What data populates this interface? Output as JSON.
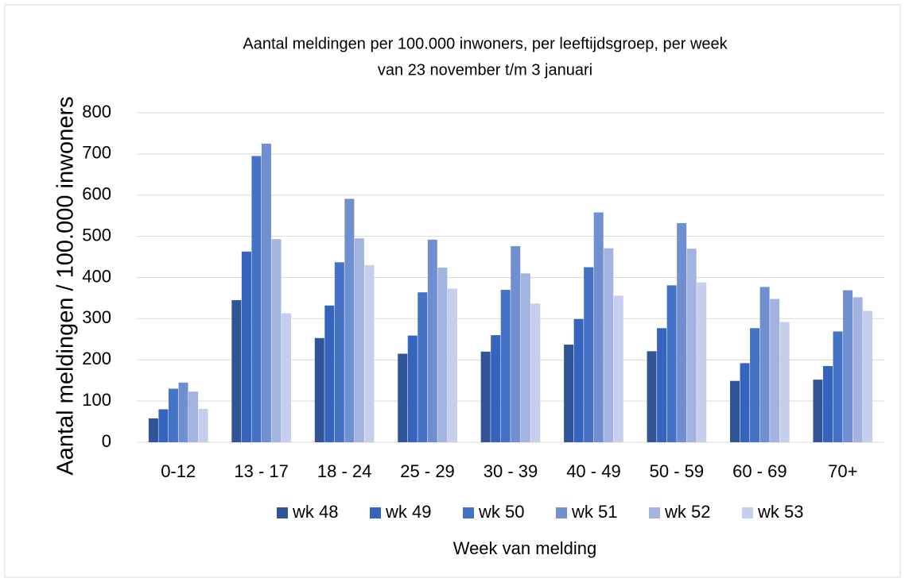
{
  "chart_data": {
    "type": "bar",
    "title": [
      "Aantal meldingen per 100.000 inwoners, per leeftijdsgroep, per week",
      "van 23 november t/m 3 januari"
    ],
    "x_label": "Week van melding",
    "y_label": "Aantal meldingen / 100.000 inwoners",
    "categories": [
      "0-12",
      "13 - 17",
      "18 - 24",
      "25 - 29",
      "30 - 39",
      "40 - 49",
      "50 - 59",
      "60 - 69",
      "70+"
    ],
    "series": [
      {
        "name": "wk 48",
        "color": "#2f5597",
        "values": [
          58,
          345,
          253,
          215,
          220,
          237,
          221,
          149,
          152
        ]
      },
      {
        "name": "wk 49",
        "color": "#3663bd",
        "values": [
          80,
          463,
          332,
          259,
          260,
          299,
          277,
          192,
          185
        ]
      },
      {
        "name": "wk 50",
        "color": "#4472c4",
        "values": [
          130,
          695,
          437,
          364,
          370,
          425,
          381,
          277,
          269
        ]
      },
      {
        "name": "wk 51",
        "color": "#6f8fd0",
        "values": [
          145,
          725,
          591,
          492,
          476,
          558,
          532,
          377,
          369
        ]
      },
      {
        "name": "wk 52",
        "color": "#a2b3e0",
        "values": [
          123,
          493,
          495,
          424,
          410,
          471,
          470,
          348,
          352
        ]
      },
      {
        "name": "wk 53",
        "color": "#c5cfeb",
        "values": [
          81,
          313,
          430,
          373,
          337,
          356,
          388,
          292,
          319
        ]
      }
    ],
    "ylim": [
      0,
      800
    ],
    "yticks": [
      0,
      100,
      200,
      300,
      400,
      500,
      600,
      700,
      800
    ],
    "grid": true,
    "legend": "bottom"
  }
}
